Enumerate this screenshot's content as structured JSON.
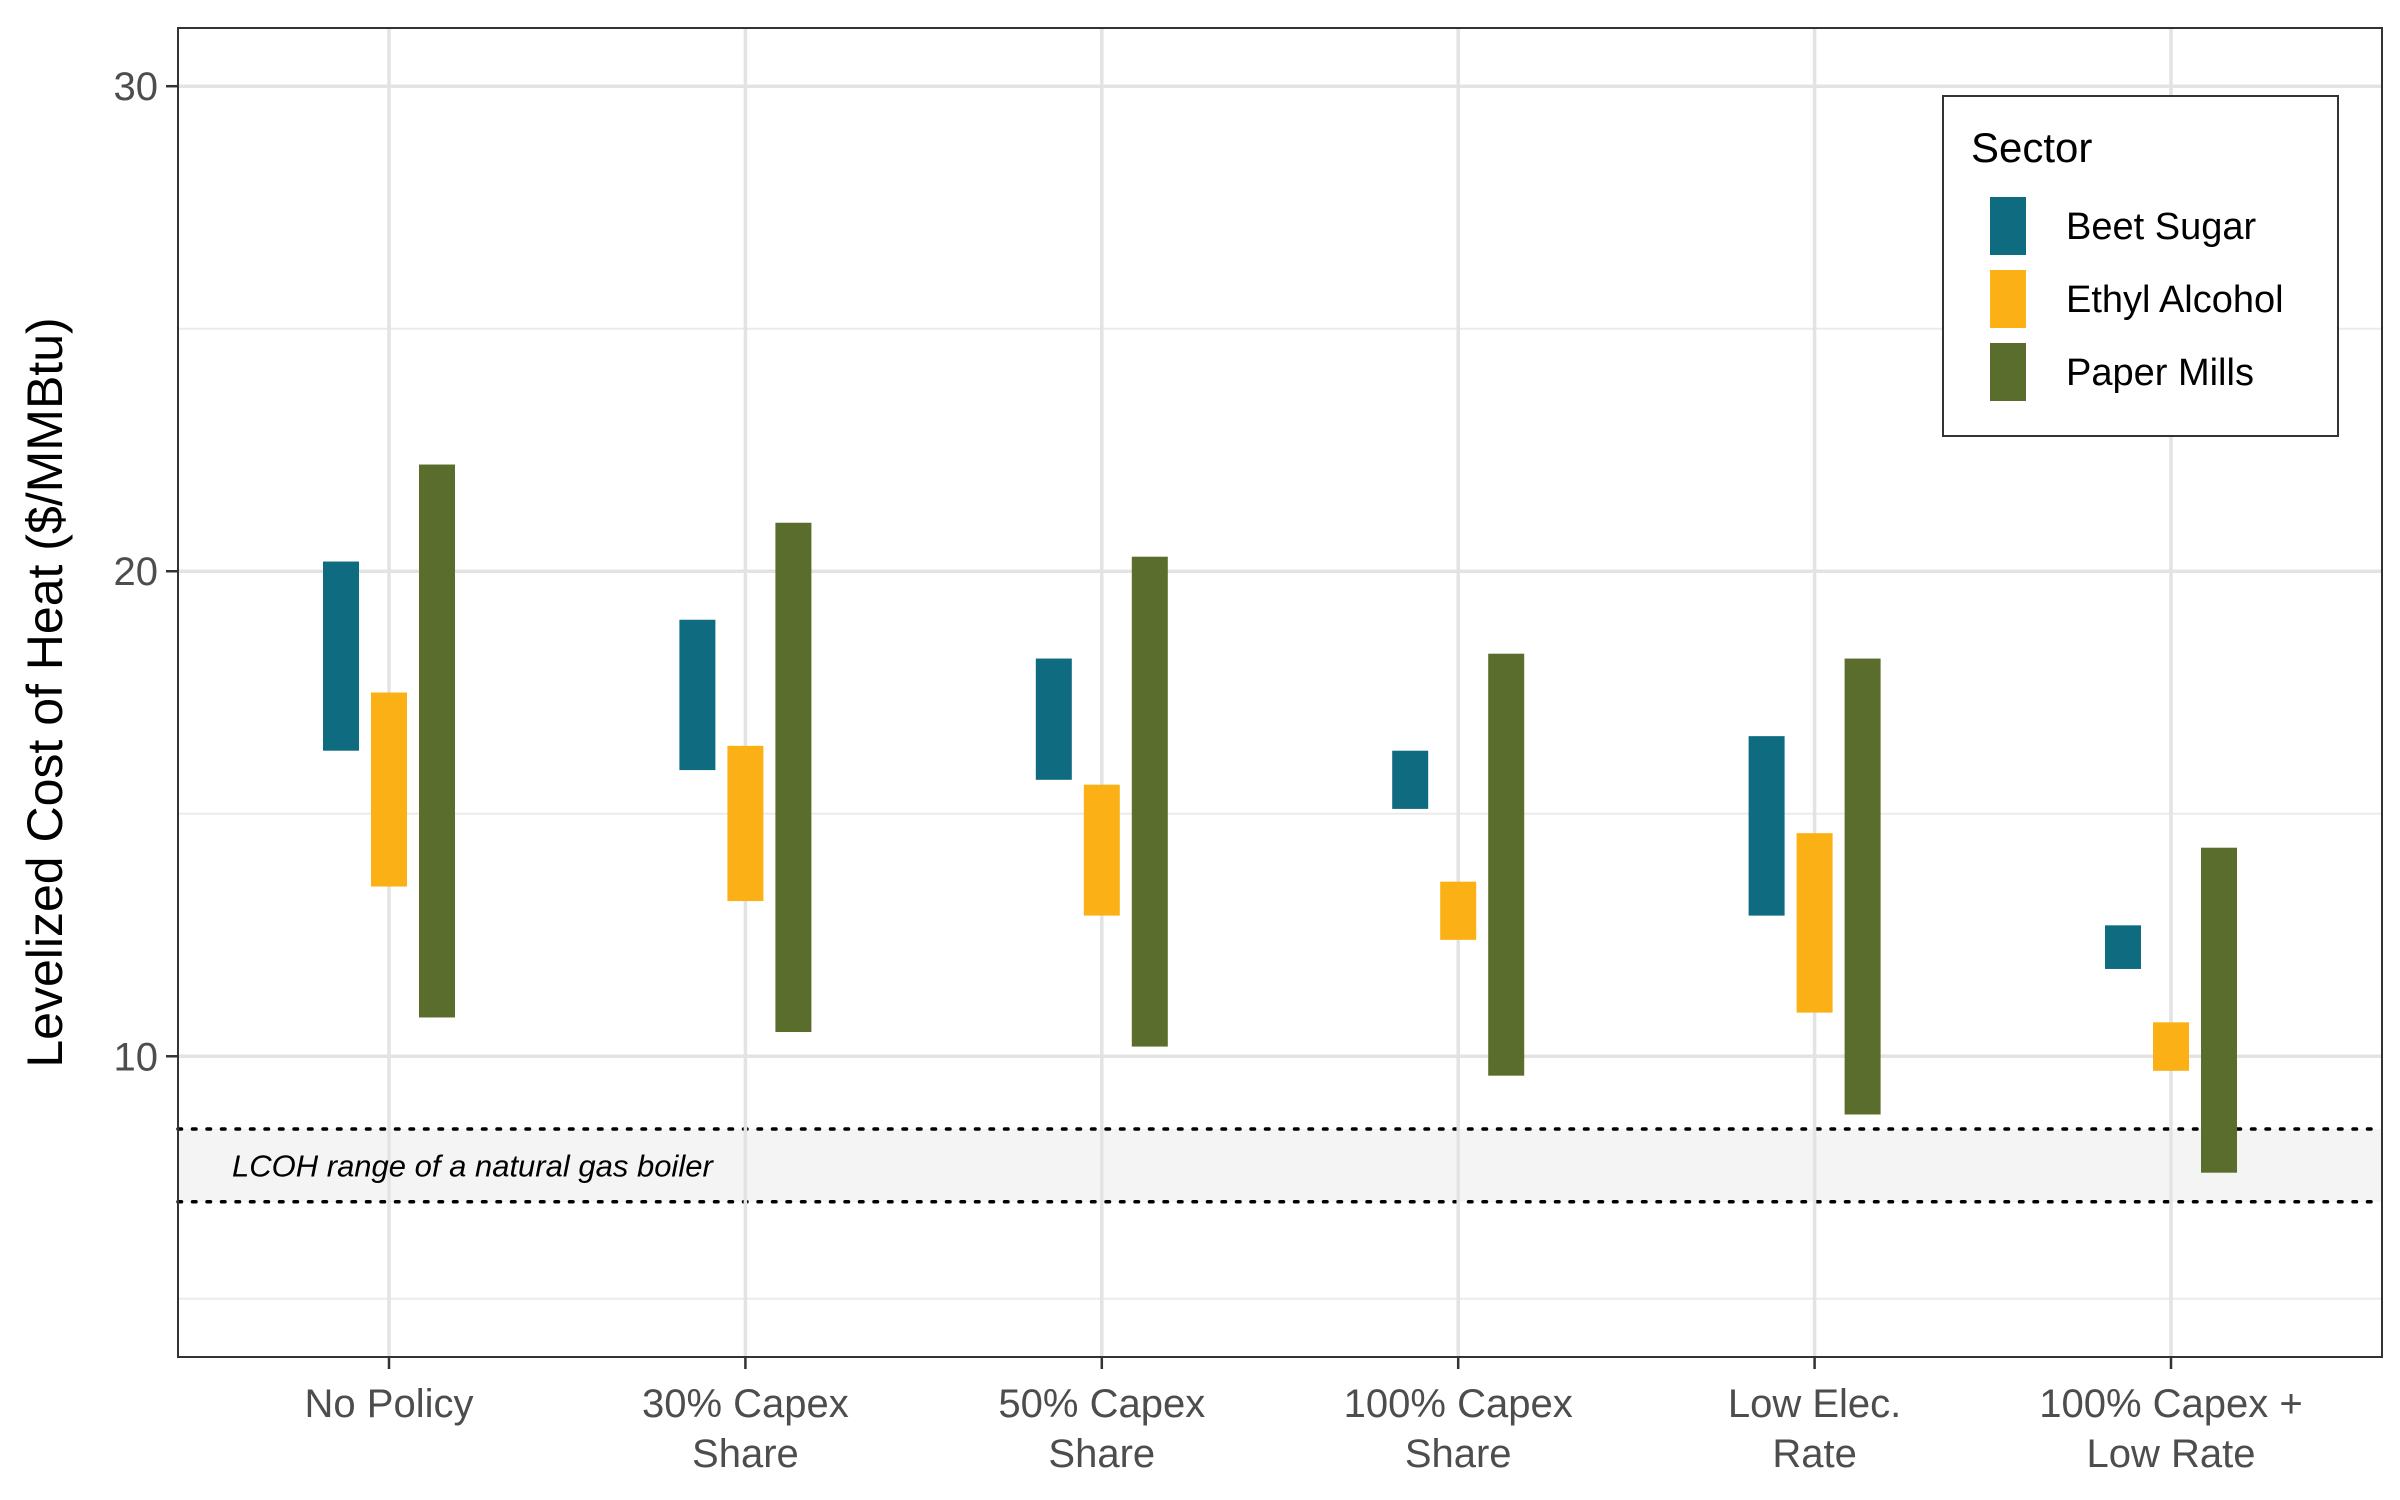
{
  "chart_data": {
    "type": "range-bar",
    "ylabel": "Levelized Cost of Heat ($/MMBtu)",
    "ylim": [
      3.8,
      31.2
    ],
    "yticks": [
      10,
      20,
      30
    ],
    "categories": [
      [
        "No Policy"
      ],
      [
        "30% Capex",
        "Share"
      ],
      [
        "50% Capex",
        "Share"
      ],
      [
        "100% Capex",
        "Share"
      ],
      [
        "Low Elec.",
        "Rate"
      ],
      [
        "100% Capex +",
        "Low Rate"
      ]
    ],
    "legend": {
      "title": "Sector",
      "position": "top-right"
    },
    "series": [
      {
        "name": "Beet Sugar",
        "color": "#0f6b80",
        "ranges": [
          [
            16.3,
            20.2
          ],
          [
            15.9,
            19.0
          ],
          [
            15.7,
            18.2
          ],
          [
            15.1,
            16.3
          ],
          [
            12.9,
            16.6
          ],
          [
            11.8,
            12.7
          ]
        ]
      },
      {
        "name": "Ethyl Alcohol",
        "color": "#fbb116",
        "ranges": [
          [
            13.5,
            17.5
          ],
          [
            13.2,
            16.4
          ],
          [
            12.9,
            15.6
          ],
          [
            12.4,
            13.6
          ],
          [
            10.9,
            14.6
          ],
          [
            9.7,
            10.7
          ]
        ]
      },
      {
        "name": "Paper Mills",
        "color": "#5b6d2c",
        "ranges": [
          [
            10.8,
            22.2
          ],
          [
            10.5,
            21.0
          ],
          [
            10.2,
            20.3
          ],
          [
            9.6,
            18.3
          ],
          [
            8.8,
            18.2
          ],
          [
            7.6,
            14.3
          ]
        ]
      }
    ],
    "reference_band": {
      "label": "LCOH range of a natural gas boiler",
      "range": [
        7.0,
        8.5
      ],
      "fill": "#f4f4f4",
      "line_style": "dotted"
    },
    "grid": true
  }
}
